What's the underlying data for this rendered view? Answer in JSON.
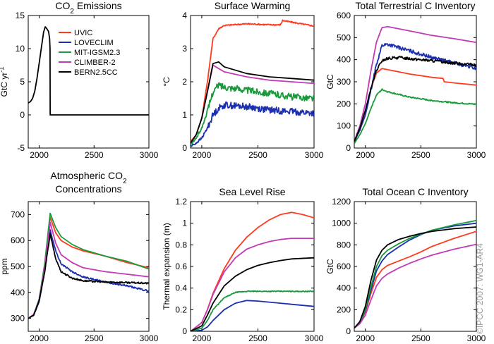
{
  "credit": "©IPCC 2007: WG1-AR4",
  "legend": [
    "UVIC",
    "LOVECLIM",
    "MIT-IGSM2.3",
    "CLIMBER-2",
    "BERN2.5CC"
  ],
  "colors": {
    "UVIC": "#ff3b1f",
    "LOVECLIM": "#1b2fb0",
    "MIT-IGSM2.3": "#1a9a3c",
    "CLIMBER-2": "#c23bb5",
    "BERN2.5CC": "#000000"
  },
  "chart_data": [
    {
      "id": "emissions",
      "type": "line",
      "title": [
        "CO2 Emissions"
      ],
      "ylabel": "GtC yr-1",
      "xlabel": "",
      "xlim": [
        1900,
        3000
      ],
      "ylim": [
        -5,
        15
      ],
      "xticks": [
        2000,
        2500,
        3000
      ],
      "yticks": [
        -5,
        0,
        5,
        10,
        15
      ],
      "legend_position": "top-right",
      "series": [
        {
          "name": "BERN2.5CC",
          "x": [
            1900,
            1920,
            1940,
            1960,
            1980,
            2000,
            2020,
            2040,
            2055,
            2070,
            2085,
            2095,
            2099,
            2100,
            3000
          ],
          "values": [
            1.8,
            2.0,
            2.5,
            3.6,
            5.5,
            7.8,
            10.2,
            12.5,
            13.3,
            13.0,
            12.6,
            11.5,
            10.0,
            0,
            0
          ]
        }
      ]
    },
    {
      "id": "warming",
      "type": "line",
      "title": [
        "Surface Warming"
      ],
      "ylabel": "°C",
      "xlabel": "",
      "xlim": [
        1900,
        3000
      ],
      "ylim": [
        0,
        4
      ],
      "xticks": [
        2000,
        2500,
        3000
      ],
      "yticks": [
        0,
        1,
        2,
        3,
        4
      ],
      "series": [
        {
          "name": "UVIC",
          "noise": 0.02,
          "x": [
            1900,
            1950,
            2000,
            2050,
            2100,
            2150,
            2200,
            2400,
            2600,
            2700,
            2720,
            2800,
            3000
          ],
          "values": [
            0.2,
            0.4,
            0.9,
            2.0,
            3.3,
            3.6,
            3.7,
            3.75,
            3.72,
            3.72,
            3.85,
            3.8,
            3.68
          ]
        },
        {
          "name": "LOVECLIM",
          "noise": 0.1,
          "x": [
            1900,
            1950,
            2000,
            2050,
            2100,
            2150,
            2200,
            2400,
            2600,
            2800,
            3000
          ],
          "values": [
            0.05,
            0.15,
            0.3,
            0.6,
            1.0,
            1.2,
            1.3,
            1.25,
            1.15,
            1.1,
            1.05
          ]
        },
        {
          "name": "MIT-IGSM2.3",
          "noise": 0.1,
          "x": [
            1900,
            1950,
            2000,
            2050,
            2100,
            2150,
            2200,
            2400,
            2600,
            2800,
            3000
          ],
          "values": [
            0.1,
            0.3,
            0.6,
            1.1,
            1.7,
            1.9,
            1.85,
            1.75,
            1.65,
            1.55,
            1.5
          ]
        },
        {
          "name": "CLIMBER-2",
          "noise": 0,
          "x": [
            1900,
            1950,
            2000,
            2050,
            2100,
            2150,
            2200,
            2400,
            2600,
            2800,
            3000
          ],
          "values": [
            0.15,
            0.4,
            0.9,
            1.7,
            2.5,
            2.4,
            2.3,
            2.15,
            2.05,
            2.0,
            1.95
          ]
        },
        {
          "name": "BERN2.5CC",
          "noise": 0,
          "x": [
            1900,
            1950,
            2000,
            2050,
            2100,
            2150,
            2200,
            2400,
            2600,
            2800,
            3000
          ],
          "values": [
            0.15,
            0.4,
            0.9,
            1.7,
            2.55,
            2.6,
            2.45,
            2.25,
            2.15,
            2.1,
            2.05
          ]
        }
      ]
    },
    {
      "id": "terrestrial",
      "type": "line",
      "title": [
        "Total Terrestrial C Inventory"
      ],
      "ylabel": "GtC",
      "xlabel": "",
      "xlim": [
        1900,
        3000
      ],
      "ylim": [
        0,
        600
      ],
      "xticks": [
        2000,
        2500,
        3000
      ],
      "yticks": [
        0,
        100,
        200,
        300,
        400,
        500,
        600
      ],
      "series": [
        {
          "name": "UVIC",
          "noise": 0,
          "x": [
            1900,
            1950,
            2000,
            2050,
            2100,
            2150,
            2200,
            2400,
            2600,
            2700,
            2710,
            2800,
            3000
          ],
          "values": [
            30,
            80,
            150,
            270,
            340,
            360,
            355,
            335,
            320,
            315,
            300,
            295,
            285
          ]
        },
        {
          "name": "LOVECLIM",
          "noise": 8,
          "x": [
            1900,
            1950,
            2000,
            2050,
            2100,
            2150,
            2200,
            2400,
            2600,
            2800,
            3000
          ],
          "values": [
            30,
            80,
            150,
            260,
            380,
            465,
            470,
            440,
            410,
            385,
            360
          ]
        },
        {
          "name": "MIT-IGSM2.3",
          "noise": 3,
          "x": [
            1900,
            1950,
            2000,
            2050,
            2100,
            2150,
            2200,
            2400,
            2600,
            2800,
            3000
          ],
          "values": [
            20,
            60,
            110,
            180,
            240,
            265,
            255,
            230,
            215,
            205,
            198
          ]
        },
        {
          "name": "CLIMBER-2",
          "noise": 0,
          "x": [
            1900,
            1950,
            2000,
            2050,
            2100,
            2150,
            2200,
            2400,
            2600,
            2800,
            3000
          ],
          "values": [
            30,
            100,
            200,
            350,
            480,
            545,
            550,
            530,
            510,
            495,
            478
          ]
        },
        {
          "name": "BERN2.5CC",
          "noise": 6,
          "x": [
            1900,
            1950,
            2000,
            2050,
            2100,
            2150,
            2200,
            2300,
            2400,
            2600,
            2800,
            3000
          ],
          "values": [
            30,
            90,
            170,
            270,
            350,
            395,
            405,
            410,
            405,
            395,
            385,
            375
          ]
        }
      ]
    },
    {
      "id": "atmospheric",
      "type": "line",
      "title": [
        "Atmospheric CO2",
        "Concentrations"
      ],
      "ylabel": "ppm",
      "xlabel": "",
      "xlim": [
        1900,
        3000
      ],
      "ylim": [
        250,
        750
      ],
      "xticks": [
        2000,
        2500,
        3000
      ],
      "yticks": [
        300,
        400,
        500,
        600,
        700
      ],
      "series": [
        {
          "name": "UVIC",
          "noise": 0,
          "x": [
            1900,
            1950,
            2000,
            2050,
            2100,
            2150,
            2200,
            2300,
            2400,
            2600,
            2800,
            3000
          ],
          "values": [
            300,
            315,
            370,
            500,
            690,
            630,
            600,
            575,
            560,
            540,
            515,
            495
          ]
        },
        {
          "name": "LOVECLIM",
          "noise": 3,
          "x": [
            1900,
            1950,
            2000,
            2050,
            2100,
            2150,
            2200,
            2300,
            2400,
            2600,
            2800,
            3000
          ],
          "values": [
            300,
            312,
            365,
            480,
            640,
            560,
            510,
            480,
            460,
            440,
            425,
            405
          ]
        },
        {
          "name": "MIT-IGSM2.3",
          "noise": 0,
          "x": [
            1900,
            1950,
            2000,
            2050,
            2100,
            2150,
            2200,
            2300,
            2400,
            2600,
            2800,
            3000
          ],
          "values": [
            300,
            315,
            375,
            510,
            705,
            650,
            615,
            585,
            565,
            540,
            520,
            490
          ]
        },
        {
          "name": "CLIMBER-2",
          "noise": 0,
          "x": [
            1900,
            1950,
            2000,
            2050,
            2100,
            2150,
            2200,
            2300,
            2400,
            2600,
            2800,
            3000
          ],
          "values": [
            300,
            315,
            370,
            495,
            670,
            590,
            545,
            515,
            495,
            480,
            470,
            460
          ]
        },
        {
          "name": "BERN2.5CC",
          "noise": 3,
          "x": [
            1900,
            1950,
            2000,
            2050,
            2100,
            2150,
            2200,
            2300,
            2400,
            2600,
            2800,
            3000
          ],
          "values": [
            300,
            312,
            368,
            480,
            625,
            530,
            480,
            455,
            445,
            440,
            438,
            435
          ]
        }
      ]
    },
    {
      "id": "sealevel",
      "type": "line",
      "title": [
        "Sea Level Rise"
      ],
      "ylabel": "Thermal expansion (m)",
      "xlabel": "",
      "xlim": [
        1900,
        3000
      ],
      "ylim": [
        0,
        1.2
      ],
      "xticks": [
        2000,
        2500,
        3000
      ],
      "yticks": [
        0,
        0.2,
        0.4,
        0.6,
        0.8,
        1,
        1.2
      ],
      "series": [
        {
          "name": "UVIC",
          "noise": 0,
          "x": [
            1900,
            2000,
            2050,
            2100,
            2200,
            2300,
            2400,
            2500,
            2600,
            2700,
            2800,
            2900,
            3000
          ],
          "values": [
            0,
            0.08,
            0.2,
            0.35,
            0.58,
            0.75,
            0.87,
            0.96,
            1.03,
            1.08,
            1.1,
            1.08,
            1.05
          ]
        },
        {
          "name": "LOVECLIM",
          "noise": 0,
          "x": [
            1900,
            2000,
            2050,
            2100,
            2200,
            2300,
            2400,
            2500,
            2600,
            2700,
            2800,
            3000
          ],
          "values": [
            0,
            0.01,
            0.04,
            0.1,
            0.2,
            0.26,
            0.285,
            0.28,
            0.27,
            0.26,
            0.25,
            0.23
          ]
        },
        {
          "name": "MIT-IGSM2.3",
          "noise": 0.004,
          "x": [
            1900,
            2000,
            2050,
            2100,
            2200,
            2300,
            2400,
            2500,
            2600,
            2800,
            3000
          ],
          "values": [
            0,
            0.03,
            0.1,
            0.2,
            0.31,
            0.36,
            0.37,
            0.37,
            0.37,
            0.37,
            0.37
          ]
        },
        {
          "name": "CLIMBER-2",
          "noise": 0,
          "x": [
            1900,
            2000,
            2050,
            2100,
            2200,
            2300,
            2400,
            2500,
            2600,
            2700,
            2800,
            3000
          ],
          "values": [
            0,
            0.08,
            0.2,
            0.34,
            0.55,
            0.68,
            0.76,
            0.8,
            0.83,
            0.85,
            0.86,
            0.86
          ]
        },
        {
          "name": "BERN2.5CC",
          "noise": 0,
          "x": [
            1900,
            2000,
            2050,
            2100,
            2200,
            2300,
            2400,
            2500,
            2600,
            2700,
            2800,
            3000
          ],
          "values": [
            0,
            0.05,
            0.15,
            0.26,
            0.42,
            0.51,
            0.57,
            0.61,
            0.635,
            0.655,
            0.67,
            0.68
          ]
        }
      ]
    },
    {
      "id": "ocean",
      "type": "line",
      "title": [
        "Total Ocean C Inventory"
      ],
      "ylabel": "GtC",
      "xlabel": "",
      "xlim": [
        1900,
        3000
      ],
      "ylim": [
        0,
        1200
      ],
      "xticks": [
        2000,
        2500,
        3000
      ],
      "yticks": [
        0,
        200,
        400,
        600,
        800,
        1000,
        1200
      ],
      "series": [
        {
          "name": "UVIC",
          "noise": 0,
          "x": [
            1900,
            1950,
            2000,
            2050,
            2100,
            2150,
            2200,
            2300,
            2400,
            2500,
            2600,
            2800,
            3000
          ],
          "values": [
            30,
            80,
            180,
            350,
            500,
            570,
            610,
            650,
            690,
            735,
            785,
            860,
            925
          ]
        },
        {
          "name": "LOVECLIM",
          "noise": 0,
          "x": [
            1900,
            1950,
            2000,
            2050,
            2100,
            2150,
            2200,
            2300,
            2400,
            2500,
            2600,
            2800,
            3000
          ],
          "values": [
            30,
            80,
            190,
            380,
            560,
            650,
            710,
            780,
            845,
            895,
            935,
            975,
            1000
          ]
        },
        {
          "name": "MIT-IGSM2.3",
          "noise": 0,
          "x": [
            1900,
            1950,
            2000,
            2050,
            2100,
            2150,
            2200,
            2300,
            2400,
            2500,
            2600,
            2800,
            3000
          ],
          "values": [
            30,
            80,
            200,
            410,
            600,
            700,
            750,
            810,
            860,
            900,
            935,
            985,
            1025
          ]
        },
        {
          "name": "CLIMBER-2",
          "noise": 0,
          "x": [
            1900,
            1950,
            2000,
            2050,
            2100,
            2150,
            2200,
            2300,
            2400,
            2500,
            2600,
            2800,
            3000
          ],
          "values": [
            30,
            70,
            150,
            290,
            420,
            490,
            530,
            585,
            630,
            670,
            705,
            760,
            805
          ]
        },
        {
          "name": "BERN2.5CC",
          "noise": 0,
          "x": [
            1900,
            1950,
            2000,
            2050,
            2100,
            2150,
            2200,
            2300,
            2400,
            2500,
            2600,
            2800,
            3000
          ],
          "values": [
            30,
            90,
            230,
            470,
            660,
            750,
            800,
            850,
            880,
            905,
            925,
            950,
            965
          ]
        }
      ]
    }
  ]
}
